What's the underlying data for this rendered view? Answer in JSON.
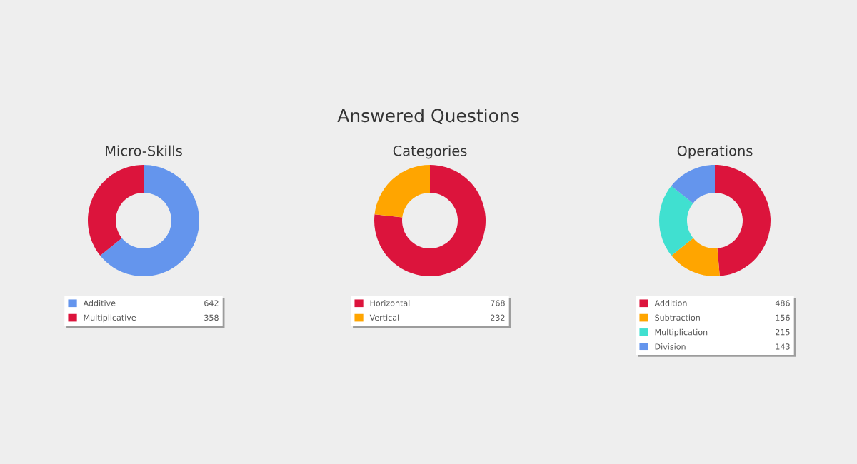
{
  "chart_data": [
    {
      "type": "donut",
      "title": "Micro-Skills",
      "annotations": [
        "Answered Questions"
      ],
      "categories": [
        "Additive",
        "Multiplicative"
      ],
      "values": [
        642,
        358
      ],
      "colors": [
        "#6495ed",
        "#dc143c"
      ],
      "legend": "bottom",
      "data_labels": true
    },
    {
      "type": "donut",
      "title": "Categories",
      "categories": [
        "Horizontal",
        "Vertical"
      ],
      "values": [
        768,
        232
      ],
      "colors": [
        "#dc143c",
        "#ffa500"
      ],
      "legend": "bottom",
      "data_labels": true
    },
    {
      "type": "donut",
      "title": "Operations",
      "categories": [
        "Addition",
        "Subtraction",
        "Multiplication",
        "Division"
      ],
      "values": [
        486,
        156,
        215,
        143
      ],
      "colors": [
        "#dc143c",
        "#ffa500",
        "#40e0d0",
        "#6495ed"
      ],
      "legend": "bottom",
      "data_labels": true
    }
  ]
}
